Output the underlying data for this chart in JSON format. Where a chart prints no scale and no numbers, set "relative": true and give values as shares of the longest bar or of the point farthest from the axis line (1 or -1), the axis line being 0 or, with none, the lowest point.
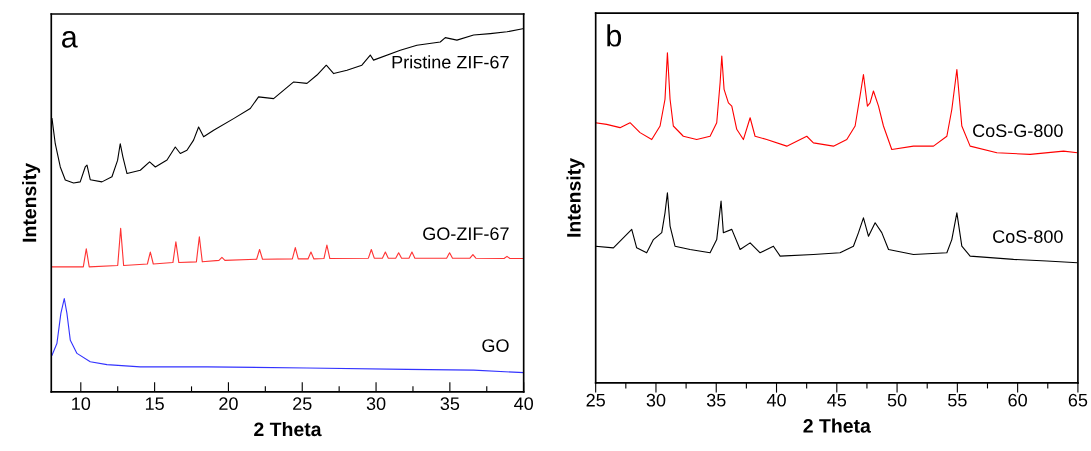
{
  "chart_data": [
    {
      "type": "line",
      "title": "a",
      "xlabel": "2 Theta",
      "ylabel": "Intensity",
      "relative": true,
      "xlim": [
        8,
        40
      ],
      "xticks": [
        10,
        {
          "value": 12.5,
          "label": null
        },
        15,
        {
          "value": 17.5,
          "label": null
        },
        20,
        {
          "value": 22.5,
          "label": null
        },
        25,
        {
          "value": 27.5,
          "label": null
        },
        30,
        {
          "value": 32.5,
          "label": null
        },
        35,
        {
          "value": 37.5,
          "label": null
        },
        40
      ],
      "tick_labels": "x",
      "grid": false,
      "legend": false,
      "series": [
        {
          "name": "Pristine ZIF-67",
          "color": "#000000",
          "x": [
            8.05,
            8.27,
            8.61,
            8.95,
            9.51,
            9.96,
            10.3,
            10.42,
            10.64,
            11.43,
            12.11,
            12.49,
            12.67,
            12.85,
            13.13,
            14.03,
            14.66,
            15.05,
            15.84,
            16.4,
            16.74,
            17.19,
            17.64,
            17.98,
            18.32,
            19.0,
            20.35,
            21.48,
            22.04,
            23.06,
            24.42,
            25.32,
            26.0,
            26.63,
            27.13,
            28.03,
            29.04,
            29.61,
            29.83,
            31.64,
            32.77,
            34.35,
            34.69,
            35.48,
            36.61,
            37.74,
            38.87,
            40.0
          ],
          "values": [
            0.752,
            0.683,
            0.619,
            0.583,
            0.575,
            0.578,
            0.619,
            0.624,
            0.584,
            0.578,
            0.592,
            0.637,
            0.683,
            0.647,
            0.601,
            0.61,
            0.633,
            0.619,
            0.638,
            0.674,
            0.656,
            0.665,
            0.693,
            0.729,
            0.702,
            0.72,
            0.752,
            0.78,
            0.812,
            0.807,
            0.853,
            0.849,
            0.872,
            0.899,
            0.876,
            0.885,
            0.899,
            0.927,
            0.913,
            0.94,
            0.954,
            0.963,
            0.975,
            0.968,
            0.982,
            0.986,
            0.991,
            1.0
          ]
        },
        {
          "name": "GO-ZIF-67",
          "color": "#ff3333",
          "x": [
            8.0,
            10.17,
            10.37,
            10.57,
            12.5,
            12.7,
            12.9,
            14.51,
            14.71,
            14.91,
            16.24,
            16.44,
            16.64,
            17.83,
            18.03,
            18.23,
            19.36,
            19.56,
            19.76,
            21.91,
            22.11,
            22.31,
            24.33,
            24.53,
            24.73,
            25.39,
            25.59,
            25.79,
            26.47,
            26.67,
            26.87,
            29.48,
            29.68,
            29.88,
            30.43,
            30.63,
            30.83,
            31.33,
            31.53,
            31.73,
            32.23,
            32.43,
            32.63,
            34.78,
            34.98,
            35.18,
            36.36,
            36.56,
            36.76,
            38.67,
            38.87,
            39.07,
            40.0
          ],
          "values": [
            0.344,
            0.344,
            0.394,
            0.344,
            0.348,
            0.45,
            0.348,
            0.352,
            0.385,
            0.352,
            0.356,
            0.413,
            0.356,
            0.358,
            0.427,
            0.358,
            0.362,
            0.37,
            0.362,
            0.365,
            0.392,
            0.365,
            0.366,
            0.397,
            0.366,
            0.366,
            0.385,
            0.366,
            0.367,
            0.404,
            0.367,
            0.368,
            0.392,
            0.368,
            0.368,
            0.385,
            0.368,
            0.368,
            0.383,
            0.368,
            0.368,
            0.385,
            0.368,
            0.368,
            0.383,
            0.368,
            0.368,
            0.378,
            0.368,
            0.367,
            0.373,
            0.367,
            0.367
          ]
        },
        {
          "name": "GO",
          "color": "#3333ff",
          "x": [
            8.05,
            8.38,
            8.65,
            8.88,
            9.06,
            9.29,
            9.74,
            10.64,
            11.77,
            14.03,
            18.55,
            25.32,
            32.09,
            36.61,
            40.0
          ],
          "values": [
            0.101,
            0.133,
            0.216,
            0.257,
            0.216,
            0.142,
            0.106,
            0.083,
            0.075,
            0.069,
            0.069,
            0.066,
            0.062,
            0.06,
            0.053
          ]
        }
      ]
    },
    {
      "type": "line",
      "title": "b",
      "xlabel": "2 Theta",
      "ylabel": "Intensity",
      "relative": true,
      "xlim": [
        25,
        65
      ],
      "xticks": [
        25,
        {
          "value": 27.5,
          "label": null
        },
        30,
        {
          "value": 32.5,
          "label": null
        },
        35,
        {
          "value": 37.5,
          "label": null
        },
        40,
        {
          "value": 42.5,
          "label": null
        },
        45,
        {
          "value": 47.5,
          "label": null
        },
        50,
        {
          "value": 52.5,
          "label": null
        },
        55,
        {
          "value": 57.5,
          "label": null
        },
        60,
        {
          "value": 62.5,
          "label": null
        },
        65
      ],
      "tick_labels": "x",
      "grid": false,
      "legend": false,
      "series": [
        {
          "name": "CoS-G-800",
          "color": "#ff0000",
          "x": [
            25.0,
            25.91,
            27.02,
            27.85,
            28.68,
            29.65,
            30.34,
            30.75,
            30.95,
            31.17,
            31.44,
            32.27,
            33.38,
            34.49,
            35.04,
            35.32,
            35.46,
            35.65,
            36.01,
            36.29,
            36.7,
            37.25,
            37.81,
            38.22,
            39.19,
            40.85,
            42.51,
            43.06,
            44.72,
            45.83,
            46.52,
            46.93,
            47.21,
            47.54,
            47.76,
            48.04,
            48.46,
            48.87,
            49.56,
            51.36,
            53.02,
            54.13,
            54.54,
            54.96,
            55.37,
            56.06,
            58.28,
            61.04,
            63.81,
            64.91
          ],
          "values": [
            0.788,
            0.783,
            0.773,
            0.788,
            0.758,
            0.737,
            0.778,
            0.859,
            1.0,
            0.859,
            0.778,
            0.747,
            0.737,
            0.747,
            0.788,
            0.909,
            0.99,
            0.889,
            0.848,
            0.838,
            0.768,
            0.737,
            0.803,
            0.747,
            0.737,
            0.717,
            0.747,
            0.727,
            0.717,
            0.737,
            0.778,
            0.869,
            0.934,
            0.838,
            0.848,
            0.884,
            0.838,
            0.778,
            0.707,
            0.717,
            0.717,
            0.747,
            0.828,
            0.949,
            0.778,
            0.717,
            0.697,
            0.692,
            0.702,
            0.697
          ]
        },
        {
          "name": "CoS-800",
          "color": "#000000",
          "x": [
            25.0,
            26.47,
            27.99,
            28.4,
            29.23,
            29.79,
            30.48,
            30.75,
            30.95,
            31.17,
            31.58,
            32.83,
            34.49,
            35.04,
            35.26,
            35.4,
            35.59,
            36.29,
            36.98,
            37.81,
            38.64,
            39.74,
            40.3,
            43.06,
            45.27,
            46.38,
            46.8,
            47.21,
            47.63,
            48.18,
            48.73,
            49.29,
            51.36,
            54.13,
            54.54,
            54.96,
            55.37,
            56.06,
            59.66,
            62.42,
            64.91
          ],
          "values": [
            0.414,
            0.409,
            0.465,
            0.409,
            0.394,
            0.434,
            0.455,
            0.515,
            0.576,
            0.475,
            0.414,
            0.404,
            0.394,
            0.434,
            0.505,
            0.551,
            0.455,
            0.465,
            0.404,
            0.424,
            0.394,
            0.414,
            0.384,
            0.389,
            0.394,
            0.414,
            0.455,
            0.5,
            0.444,
            0.485,
            0.455,
            0.404,
            0.389,
            0.394,
            0.434,
            0.515,
            0.414,
            0.384,
            0.374,
            0.369,
            0.364
          ]
        }
      ]
    }
  ]
}
